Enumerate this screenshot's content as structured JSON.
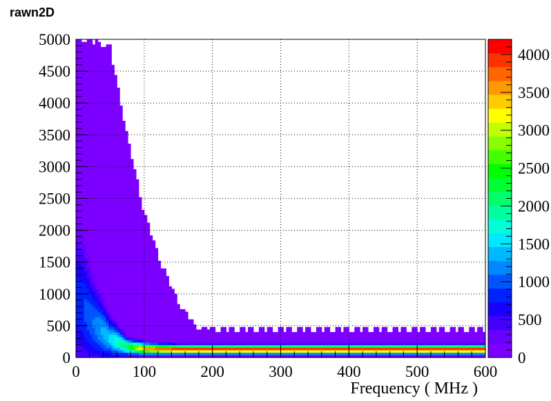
{
  "chart_data": {
    "type": "heatmap",
    "title": "rawn2D",
    "xlabel": "Frequency ( MHz )",
    "ylabel": "",
    "xlim": [
      0,
      600
    ],
    "ylim": [
      0,
      5000
    ],
    "zlim": [
      0,
      4200
    ],
    "x_ticks": [
      0,
      100,
      200,
      300,
      400,
      500,
      600
    ],
    "y_ticks": [
      0,
      500,
      1000,
      1500,
      2000,
      2500,
      3000,
      3500,
      4000,
      4500,
      5000
    ],
    "z_ticks": [
      0,
      500,
      1000,
      1500,
      2000,
      2500,
      3000,
      3500,
      4000
    ],
    "x_tick_labels": [
      "0",
      "100",
      "200",
      "300",
      "400",
      "500",
      "600"
    ],
    "y_tick_labels": [
      "0",
      "500",
      "1000",
      "1500",
      "2000",
      "2500",
      "3000",
      "3500",
      "4000",
      "4500",
      "5000"
    ],
    "z_tick_labels": [
      "0",
      "500",
      "1000",
      "1500",
      "2000",
      "2500",
      "3000",
      "3500",
      "4000"
    ],
    "grid": true,
    "colorbar": true,
    "palette": [
      "#7c00ff",
      "#6a00ff",
      "#4400ff",
      "#1a00ff",
      "#0022ff",
      "#0055ff",
      "#0088ff",
      "#00b8ff",
      "#00e8ff",
      "#00ffd8",
      "#00ffa0",
      "#00ff6a",
      "#00ff33",
      "#00ff00",
      "#44ff00",
      "#88ff00",
      "#c4ff00",
      "#ffff00",
      "#ffcc00",
      "#ff9900",
      "#ff6600",
      "#ff3300",
      "#ff0000"
    ],
    "envelope": {
      "x": [
        0,
        25,
        50,
        75,
        100,
        125,
        150,
        175,
        200,
        250,
        300,
        400,
        500,
        600
      ],
      "upper_y": [
        5000,
        5000,
        4900,
        3500,
        2300,
        1500,
        900,
        500,
        480,
        470,
        470,
        470,
        470,
        470
      ]
    },
    "ridge": {
      "x": [
        0,
        10,
        25,
        50,
        75,
        100,
        150,
        200,
        300,
        400,
        500,
        600
      ],
      "center_y": [
        900,
        800,
        550,
        300,
        170,
        140,
        130,
        130,
        130,
        130,
        130,
        130
      ],
      "peak_value": [
        800,
        900,
        1100,
        1500,
        2200,
        3500,
        4000,
        4000,
        4000,
        4000,
        4000,
        4000
      ]
    }
  }
}
